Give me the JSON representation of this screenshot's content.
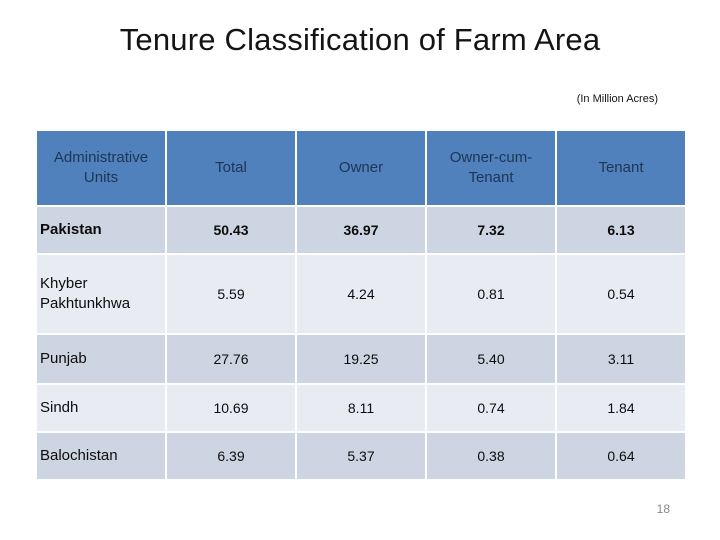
{
  "slide": {
    "title": "Tenure Classification of Farm Area",
    "unit_note": "(In Million Acres)",
    "page_number": "18"
  },
  "table": {
    "columns": [
      "Administrative Units",
      "Total",
      "Owner",
      "Owner-cum-Tenant",
      "Tenant"
    ],
    "rows": [
      {
        "label": "Pakistan",
        "values": [
          "50.43",
          "36.97",
          "7.32",
          "6.13"
        ],
        "emphasis": true
      },
      {
        "label": "Khyber Pakhtunkhwa",
        "values": [
          "5.59",
          "4.24",
          "0.81",
          "0.54"
        ],
        "emphasis": false
      },
      {
        "label": "Punjab",
        "values": [
          "27.76",
          "19.25",
          "5.40",
          "3.11"
        ],
        "emphasis": false
      },
      {
        "label": "Sindh",
        "values": [
          "10.69",
          "8.11",
          "0.74",
          "1.84"
        ],
        "emphasis": false
      },
      {
        "label": "Balochistan",
        "values": [
          "6.39",
          "5.37",
          "0.38",
          "0.64"
        ],
        "emphasis": false
      }
    ]
  },
  "colors": {
    "header_bg": "#5081bd",
    "header_text": "#1e3555",
    "band_dark": "#cdd4e2",
    "band_light": "#e9ebf3",
    "title_text": "#141414",
    "page_number_text": "#8a8a8a"
  }
}
